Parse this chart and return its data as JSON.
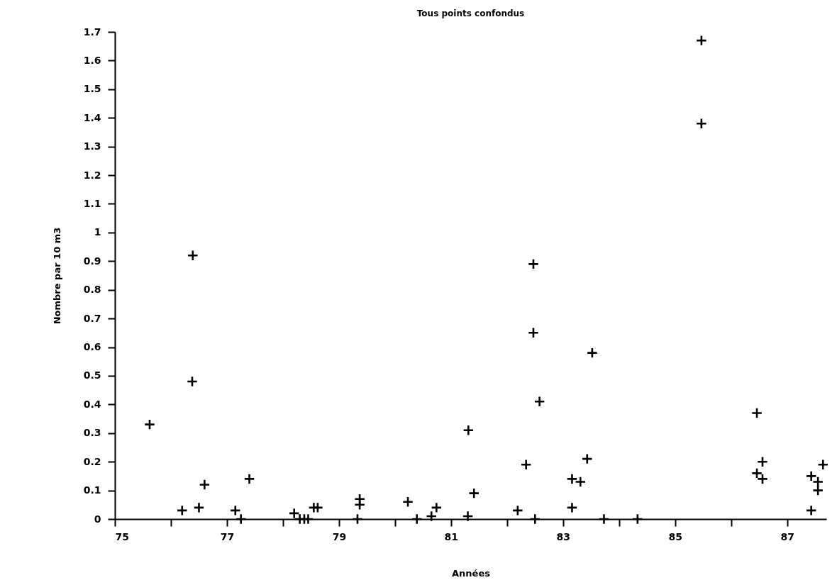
{
  "chart_data": {
    "type": "scatter",
    "title": "Tous points confondus",
    "xlabel": "Années",
    "ylabel": "Nombre par 10 m3",
    "x": [
      75.62,
      76.2,
      76.38,
      76.39,
      76.5,
      76.6,
      77.15,
      77.25,
      77.4,
      78.2,
      78.3,
      78.38,
      78.45,
      78.55,
      78.62,
      79.33,
      79.37,
      79.37,
      80.23,
      80.39,
      80.65,
      80.74,
      81.3,
      81.31,
      81.41,
      82.19,
      82.34,
      82.47,
      82.47,
      82.5,
      82.58,
      83.16,
      83.16,
      83.31,
      83.43,
      83.52,
      83.73,
      84.33,
      85.47,
      85.47,
      86.46,
      86.46,
      86.56,
      86.56,
      87.43,
      87.43,
      87.55,
      87.55,
      87.64
    ],
    "values": [
      0.33,
      0.03,
      0.48,
      0.92,
      0.04,
      0.12,
      0.03,
      0,
      0.14,
      0.02,
      0,
      0,
      0,
      0.04,
      0.04,
      0,
      0.07,
      0.05,
      0.06,
      0,
      0.01,
      0.04,
      0.01,
      0.31,
      0.09,
      0.03,
      0.19,
      0.89,
      0.65,
      0,
      0.41,
      0.14,
      0.04,
      0.13,
      0.21,
      0.58,
      0,
      0,
      1.67,
      1.38,
      0.37,
      0.16,
      0.2,
      0.14,
      0.15,
      0.03,
      0.13,
      0.1,
      0.19
    ],
    "color": "#000000",
    "marker": "cross",
    "grid": false,
    "xlim": [
      75,
      87.7
    ],
    "xticks": [
      75,
      {
        "value": 76,
        "label": null
      },
      77,
      {
        "value": 78,
        "label": null
      },
      79,
      {
        "value": 80,
        "label": null
      },
      81,
      {
        "value": 82,
        "label": null
      },
      83,
      {
        "value": 84,
        "label": null
      },
      85,
      {
        "value": 86,
        "label": null
      },
      87
    ],
    "ylim": [
      0,
      1.7
    ],
    "yticks": [
      0,
      0.1,
      0.2,
      0.3,
      0.4,
      0.5,
      0.6,
      0.7,
      0.8,
      0.9,
      1,
      1.1,
      1.2,
      1.3,
      1.4,
      1.5,
      1.6,
      1.7
    ]
  }
}
